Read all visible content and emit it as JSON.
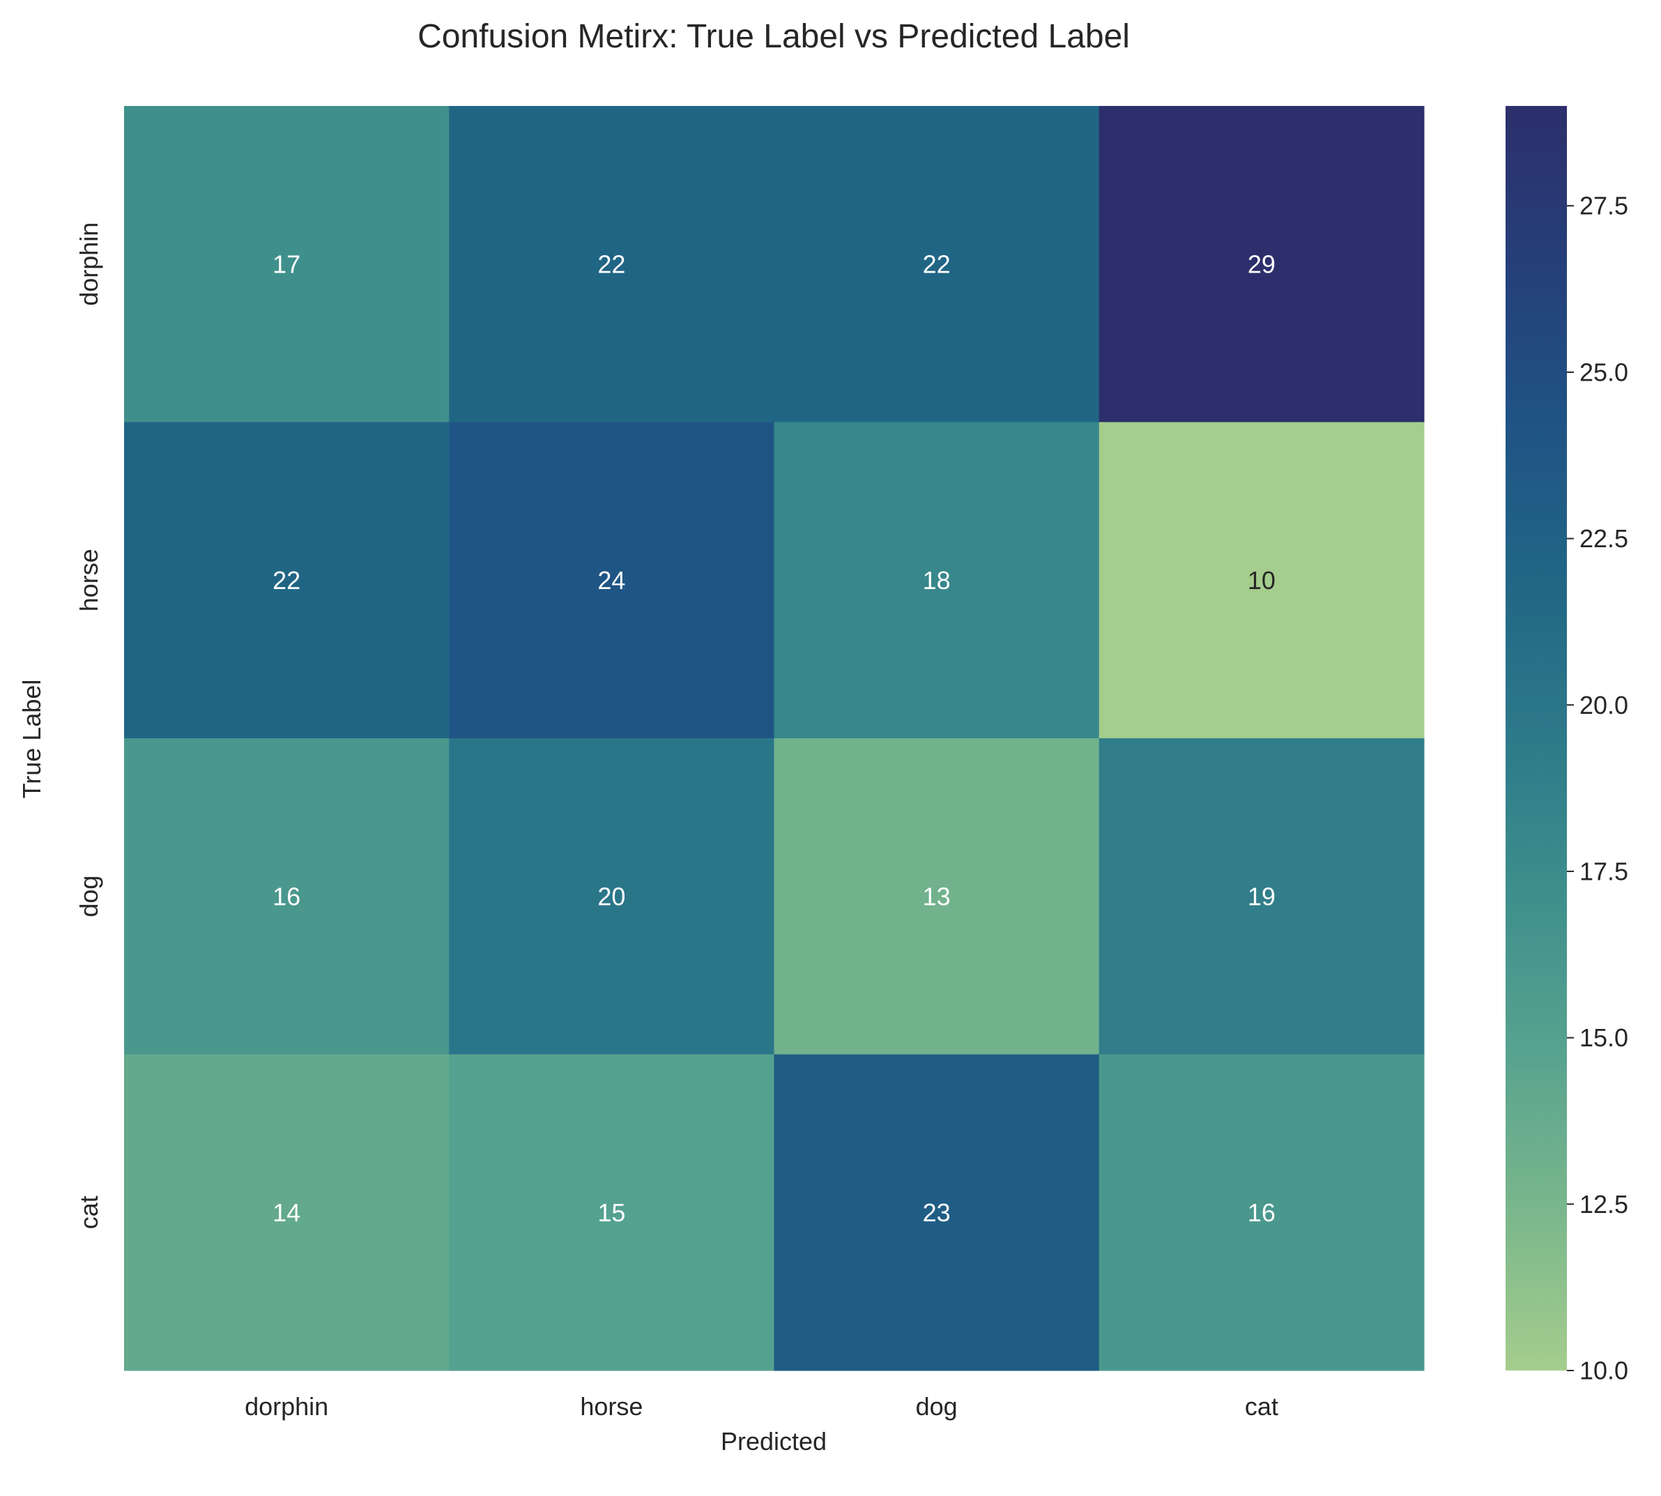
{
  "chart_data": {
    "type": "heatmap",
    "title": "Confusion Metirx: True Label vs Predicted Label",
    "xlabel": "Predicted",
    "ylabel": "True Label",
    "x_categories": [
      "dorphin",
      "horse",
      "dog",
      "cat"
    ],
    "y_categories": [
      "dorphin",
      "horse",
      "dog",
      "cat"
    ],
    "values": [
      [
        17,
        22,
        22,
        29
      ],
      [
        22,
        24,
        18,
        10
      ],
      [
        16,
        20,
        13,
        19
      ],
      [
        14,
        15,
        23,
        16
      ]
    ],
    "colorbar": {
      "range": [
        10,
        29
      ],
      "ticks": [
        10.0,
        12.5,
        15.0,
        17.5,
        20.0,
        22.5,
        25.0,
        27.5
      ],
      "tick_labels": [
        "10.0",
        "12.5",
        "15.0",
        "17.5",
        "20.0",
        "22.5",
        "25.0",
        "27.5"
      ]
    },
    "colormap": [
      "#a5cd8d",
      "#7ab78c",
      "#58a38f",
      "#3e8f8c",
      "#2d7a8a",
      "#216685",
      "#1f5385",
      "#253f7a",
      "#2c2f6b"
    ],
    "text_dark_color": "#262626",
    "text_light_color": "#ffffff",
    "grid": false
  }
}
